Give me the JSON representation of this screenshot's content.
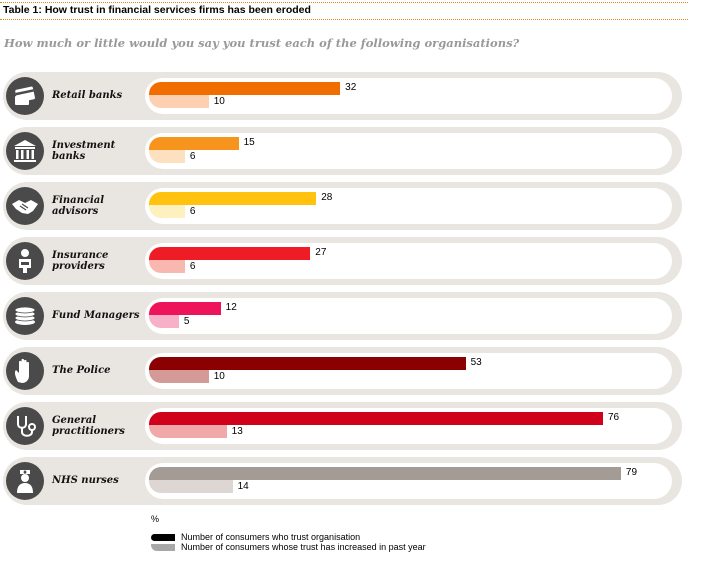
{
  "header": {
    "table_title": "Table 1: How trust in financial services firms has been eroded",
    "question": "How much or little would you say you trust each of the following organisations?"
  },
  "chart_data": {
    "type": "bar",
    "orientation": "horizontal",
    "categories": [
      "Retail banks",
      "Investment banks",
      "Financial advisors",
      "Insurance providers",
      "Fund Managers",
      "The Police",
      "General practitioners",
      "NHS nurses"
    ],
    "series": [
      {
        "name": "Number of consumers who trust organisation",
        "values": [
          32,
          15,
          28,
          27,
          12,
          53,
          76,
          79
        ]
      },
      {
        "name": "Number of consumers whose trust has increased in past year",
        "values": [
          10,
          6,
          6,
          6,
          5,
          10,
          13,
          14
        ]
      }
    ],
    "unit": "%",
    "colors": {
      "primary": [
        "#f26d00",
        "#f7941d",
        "#ffc20e",
        "#ee1c25",
        "#ed145b",
        "#8b0000",
        "#d0021b",
        "#a59b95"
      ],
      "secondary": [
        "#fcd0b0",
        "#fde0c0",
        "#fff0c0",
        "#f8b8b0",
        "#f8b0c8",
        "#d49a98",
        "#f0a8a8",
        "#ddd6d2"
      ]
    },
    "icons": [
      "credit-card-icon",
      "bank-building-icon",
      "handshake-icon",
      "insurance-person-icon",
      "coin-stack-icon",
      "hand-palm-icon",
      "stethoscope-icon",
      "nurse-icon"
    ]
  },
  "legend": {
    "unit": "%",
    "items": [
      {
        "label": "Number of consumers who trust organisation",
        "color": "#000000"
      },
      {
        "label": "Number of consumers whose trust has increased in past year",
        "color": "#a8a8a8"
      }
    ]
  }
}
